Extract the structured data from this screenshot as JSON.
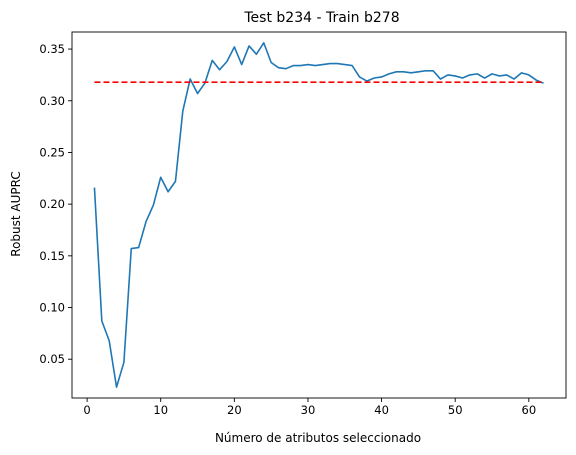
{
  "chart_data": {
    "type": "line",
    "title": "Test b234 - Train b278",
    "xlabel": "Número de atributos seleccionado",
    "ylabel": "Robust AUPRC",
    "xlim": [
      -2.05,
      65.05
    ],
    "ylim": [
      0.0125,
      0.3665
    ],
    "xticks": [
      0,
      10,
      20,
      30,
      40,
      50,
      60
    ],
    "xtick_labels": [
      "0",
      "10",
      "20",
      "30",
      "40",
      "50",
      "60"
    ],
    "yticks": [
      0.05,
      0.1,
      0.15,
      0.2,
      0.25,
      0.3,
      0.35
    ],
    "ytick_labels": [
      "0.05",
      "0.10",
      "0.15",
      "0.20",
      "0.25",
      "0.30",
      "0.35"
    ],
    "grid": false,
    "series": [
      {
        "color": "#1f77b4",
        "style": "solid",
        "x": [
          1,
          2,
          3,
          4,
          5,
          6,
          7,
          8,
          9,
          10,
          11,
          12,
          13,
          14,
          15,
          16,
          17,
          18,
          19,
          20,
          21,
          22,
          23,
          24,
          25,
          26,
          27,
          28,
          29,
          30,
          31,
          32,
          33,
          34,
          35,
          36,
          37,
          38,
          39,
          40,
          41,
          42,
          43,
          44,
          45,
          46,
          47,
          48,
          49,
          50,
          51,
          52,
          53,
          54,
          55,
          56,
          57,
          58,
          59,
          60,
          61,
          62
        ],
        "values": [
          0.216,
          0.087,
          0.068,
          0.023,
          0.047,
          0.157,
          0.158,
          0.183,
          0.199,
          0.226,
          0.212,
          0.222,
          0.29,
          0.321,
          0.307,
          0.317,
          0.339,
          0.33,
          0.338,
          0.352,
          0.335,
          0.353,
          0.345,
          0.356,
          0.337,
          0.332,
          0.331,
          0.334,
          0.334,
          0.335,
          0.334,
          0.335,
          0.336,
          0.336,
          0.335,
          0.334,
          0.323,
          0.319,
          0.322,
          0.323,
          0.326,
          0.328,
          0.328,
          0.327,
          0.328,
          0.329,
          0.329,
          0.321,
          0.325,
          0.324,
          0.322,
          0.325,
          0.326,
          0.322,
          0.326,
          0.324,
          0.325,
          0.321,
          0.327,
          0.325,
          0.32,
          0.317
        ]
      },
      {
        "color": "#ff0000",
        "style": "dashed",
        "x": [
          1,
          62
        ],
        "values": [
          0.318,
          0.318
        ]
      }
    ]
  }
}
